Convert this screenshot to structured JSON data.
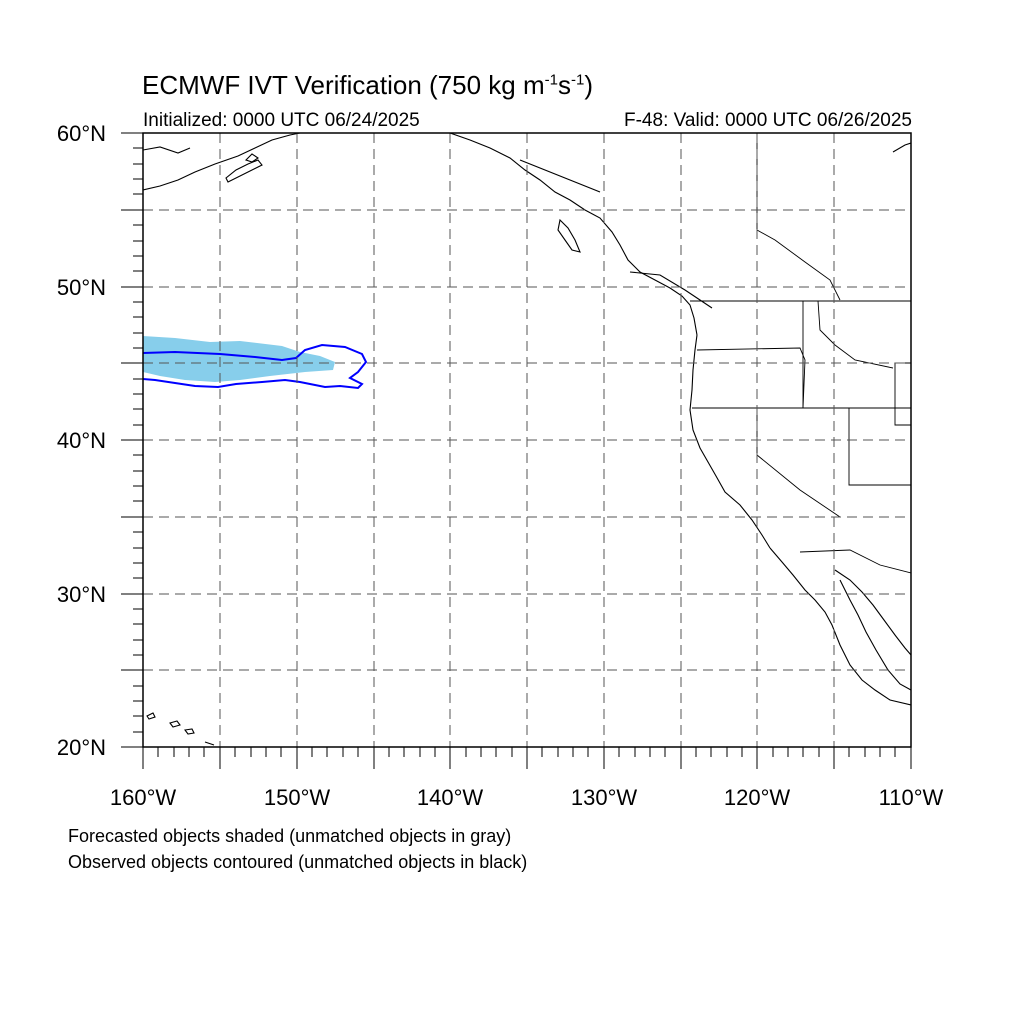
{
  "header": {
    "title_main": "ECMWF IVT Verification (750 kg m",
    "title_exp1": "-1",
    "title_mid": "s",
    "title_exp2": "-1",
    "title_end": ")",
    "initialized": "Initialized: 0000 UTC 06/24/2025",
    "valid": "F-48: Valid: 0000 UTC 06/26/2025"
  },
  "map": {
    "lon_range": [
      -160,
      -110
    ],
    "lat_range": [
      20,
      60
    ],
    "lat_labels": [
      "60°N",
      "50°N",
      "40°N",
      "30°N",
      "20°N"
    ],
    "lon_labels": [
      "160°W",
      "150°W",
      "140°W",
      "130°W",
      "120°W",
      "110°W"
    ],
    "grid": "dashed every 5 degrees",
    "forecast_color": "#87ceeb",
    "observed_color": "#0000ff"
  },
  "footer": {
    "line1": "Forecasted objects shaded (unmatched objects in gray)",
    "line2": "Observed objects contoured (unmatched objects in black)"
  }
}
